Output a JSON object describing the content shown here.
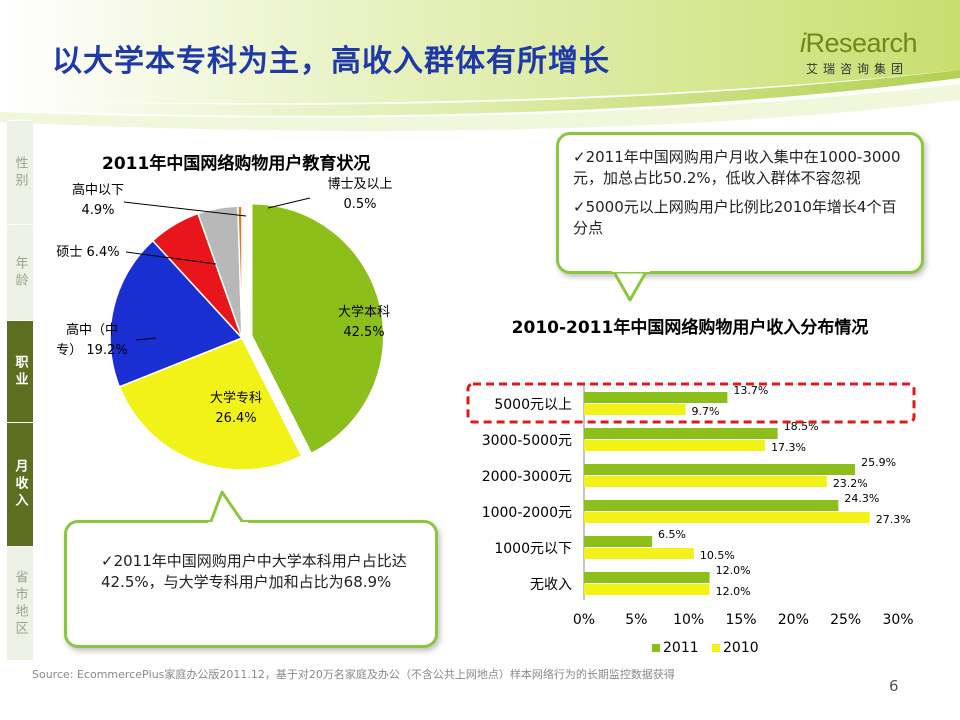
{
  "title": "以大学本专科为主，高收入群体有所增长",
  "logo": {
    "main_prefix": "i",
    "main_rest": "Research",
    "sub": "艾瑞咨询集团"
  },
  "tabs": [
    {
      "label": "性别",
      "active": false
    },
    {
      "label": "年龄",
      "active": false
    },
    {
      "label": "职业",
      "active": true
    },
    {
      "label": "月收入",
      "active": true
    },
    {
      "label": "省市地区",
      "active": false
    }
  ],
  "callout_top": [
    "✓2011年中国网购用户月收入集中在1000-3000元，加总占比50.2%，低收入群体不容忽视",
    "✓5000元以上网购用户比例比2010年增长4个百分点"
  ],
  "callout_bottom": "✓2011年中国网购用户中大学本科用户占比达42.5%，与大学专科用户加和占比为68.9%",
  "source": "Source:  EcommercePlus家庭办公版2011.12，基于对20万名家庭及办公（不含公共上网地点）样本网络行为的长期监控数据获得",
  "page_number": "6",
  "chart_data": [
    {
      "type": "pie",
      "title": "2011年中国网络购物用户教育状况",
      "slices": [
        {
          "name": "大学本科",
          "value": 42.5,
          "label": "42.5%",
          "color": "#8cbf1a"
        },
        {
          "name": "大学专科",
          "value": 26.4,
          "label": "26.4%",
          "color": "#f2f218"
        },
        {
          "name": "高中（中专）",
          "value": 19.2,
          "label": "19.2%",
          "color": "#1a2fd1"
        },
        {
          "name": "硕士",
          "value": 6.4,
          "label": "6.4%",
          "color": "#e8151b"
        },
        {
          "name": "高中以下",
          "value": 4.9,
          "label": "4.9%",
          "color": "#b8b8b8"
        },
        {
          "name": "博士及以上",
          "value": 0.5,
          "label": "0.5%",
          "color": "#e07a2a"
        }
      ]
    },
    {
      "type": "bar",
      "orientation": "horizontal",
      "title": "2010-2011年中国网络购物用户收入分布情况",
      "categories": [
        "5000元以上",
        "3000-5000元",
        "2000-3000元",
        "1000-2000元",
        "1000元以下",
        "无收入"
      ],
      "series": [
        {
          "name": "2011",
          "color": "#8cbf1a",
          "values": [
            13.7,
            18.5,
            25.9,
            24.3,
            6.5,
            12.0
          ],
          "labels": [
            "13.7%",
            "18.5%",
            "25.9%",
            "24.3%",
            "6.5%",
            "12.0%"
          ]
        },
        {
          "name": "2010",
          "color": "#f2f218",
          "values": [
            9.7,
            17.3,
            23.2,
            27.3,
            10.5,
            12.0
          ],
          "labels": [
            "9.7%",
            "17.3%",
            "23.2%",
            "27.3%",
            "10.5%",
            "12.0%"
          ]
        }
      ],
      "xlim": [
        0,
        30
      ],
      "ticks": [
        "0%",
        "5%",
        "10%",
        "15%",
        "20%",
        "25%",
        "30%"
      ],
      "legend_position": "bottom",
      "highlight_category": "5000元以上",
      "highlight_color": "#e01a1a"
    }
  ]
}
